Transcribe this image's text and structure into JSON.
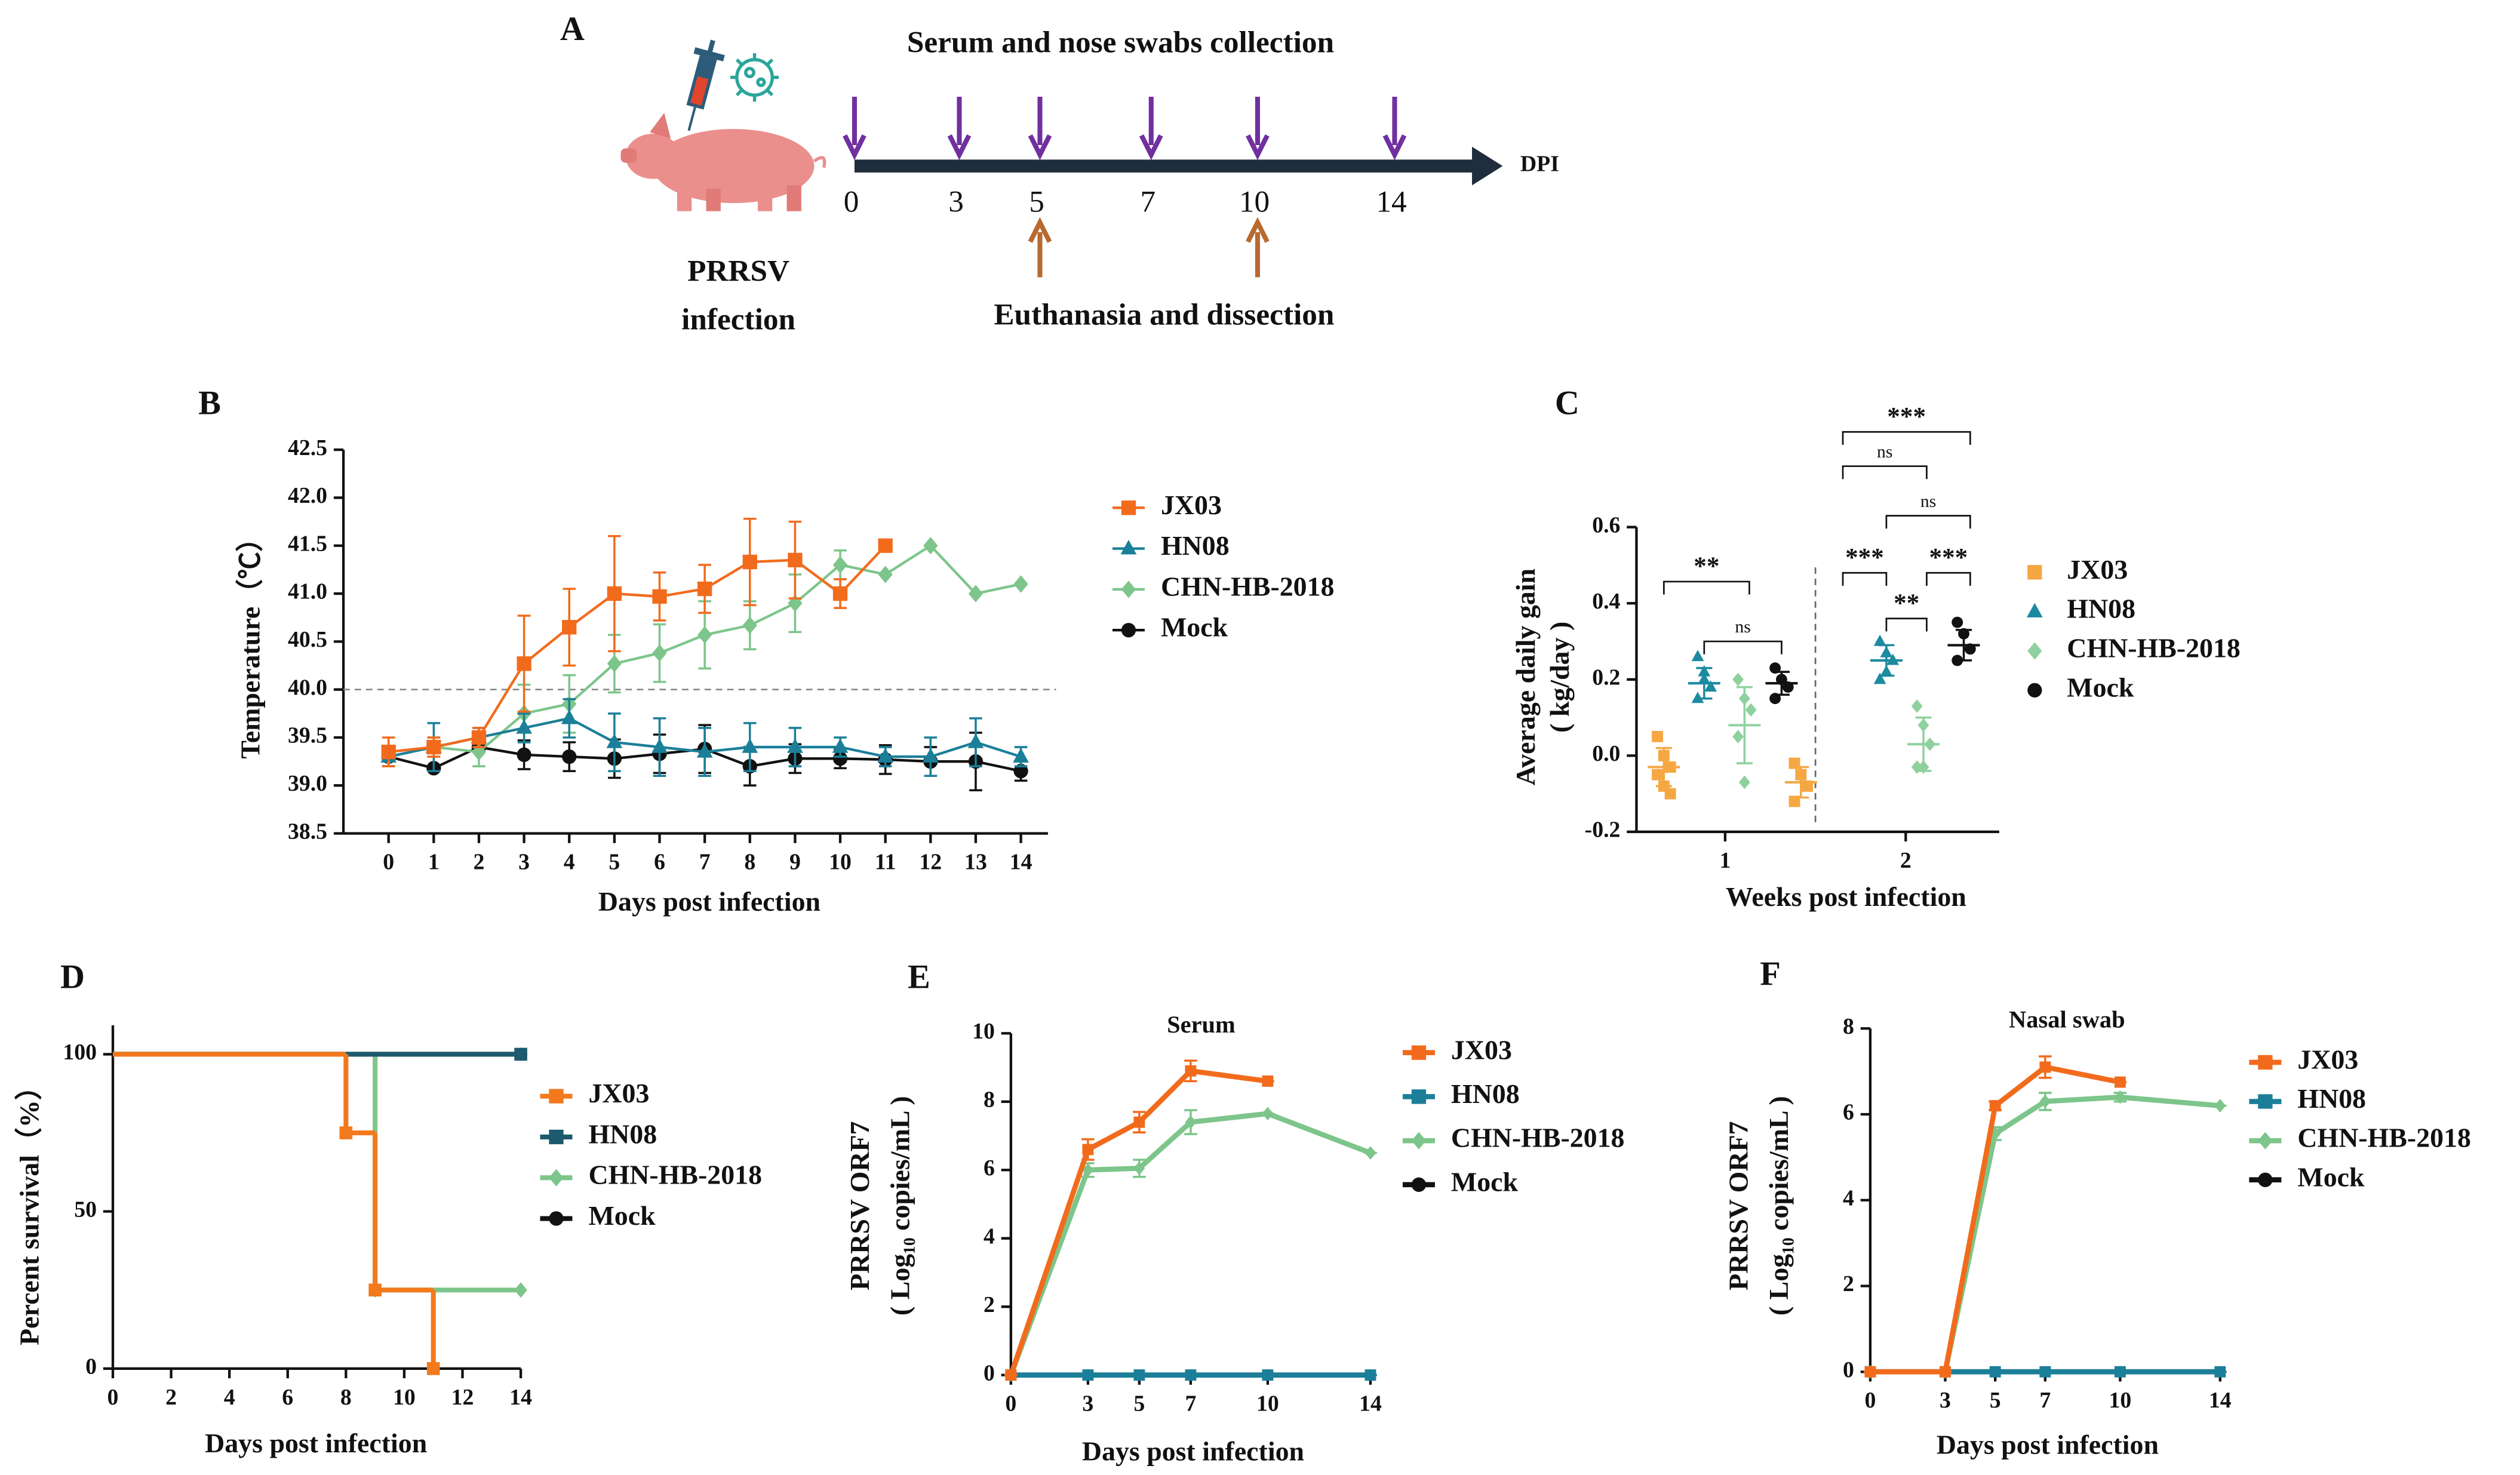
{
  "timeline": {
    "panel": "A",
    "title": "Serum and nose swabs collection",
    "days": [
      0,
      3,
      5,
      7,
      10,
      14
    ],
    "unit": "DPI",
    "sampling_days": [
      0,
      3,
      5,
      7,
      10,
      14
    ],
    "euthanasia_days": [
      5,
      10
    ],
    "euthanasia_label": "Euthanasia and dissection",
    "infection_label": [
      "PRRSV",
      "infection"
    ],
    "title_color": "#7030a0",
    "euthanasia_color": "#b8692e"
  },
  "chart_data": [
    {
      "panel": "B",
      "type": "line",
      "xlabel": "Days post infection",
      "ylabel": [
        "Temperature（℃）"
      ],
      "x": [
        0,
        1,
        2,
        3,
        4,
        5,
        6,
        7,
        8,
        9,
        10,
        11,
        12,
        13,
        14
      ],
      "xlim": [
        -1,
        14.6
      ],
      "xticks": [
        0,
        1,
        2,
        3,
        4,
        5,
        6,
        7,
        8,
        9,
        10,
        11,
        12,
        13,
        14
      ],
      "ylim": [
        38.5,
        42.5
      ],
      "yticks": [
        38.5,
        {
          "value": 39,
          "label": "39.0"
        },
        39.5,
        {
          "value": 40,
          "label": "40.0"
        },
        40.5,
        {
          "value": 41,
          "label": "41.0"
        },
        41.5,
        {
          "value": 42,
          "label": "42.0"
        },
        42.5
      ],
      "ref_line": 40,
      "series": [
        {
          "name": "JX03",
          "color": "#f26b1d",
          "marker": "square",
          "values": [
            39.35,
            39.4,
            39.5,
            40.27,
            40.65,
            41.0,
            40.97,
            41.05,
            41.33,
            41.35,
            41.0,
            41.5,
            null,
            null,
            null
          ],
          "errors": [
            0.15,
            0.1,
            0.1,
            0.5,
            0.4,
            0.6,
            0.25,
            0.25,
            0.45,
            0.4,
            0.15,
            0,
            null,
            null,
            null
          ]
        },
        {
          "name": "HN08",
          "color": "#1b7f99",
          "marker": "triangle",
          "values": [
            39.3,
            39.4,
            39.5,
            39.6,
            39.7,
            39.45,
            39.4,
            39.35,
            39.4,
            39.4,
            39.4,
            39.3,
            39.3,
            39.45,
            39.3
          ],
          "errors": [
            0.1,
            0.25,
            0.1,
            0.15,
            0.2,
            0.3,
            0.3,
            0.25,
            0.25,
            0.2,
            0.1,
            0.1,
            0.2,
            0.25,
            0.1
          ]
        },
        {
          "name": "CHN-HB-2018",
          "color": "#7dc58a",
          "marker": "diamond",
          "values": [
            39.3,
            39.4,
            39.35,
            39.75,
            39.85,
            40.27,
            40.38,
            40.57,
            40.67,
            40.9,
            41.3,
            41.2,
            41.5,
            41.0,
            41.1
          ],
          "errors": [
            0.1,
            0.1,
            0.15,
            0.3,
            0.3,
            0.3,
            0.3,
            0.35,
            0.25,
            0.3,
            0.15,
            0,
            0,
            0,
            0
          ]
        },
        {
          "name": "Mock",
          "color": "#111111",
          "marker": "circle",
          "values": [
            39.3,
            39.18,
            39.4,
            39.32,
            39.3,
            39.28,
            39.33,
            39.38,
            39.2,
            39.28,
            39.28,
            39.27,
            39.25,
            39.25,
            39.15
          ],
          "errors": [
            0.1,
            0,
            0.05,
            0.15,
            0.15,
            0.2,
            0.2,
            0.25,
            0.2,
            0.15,
            0.1,
            0.15,
            0.15,
            0.3,
            0.1
          ]
        }
      ]
    },
    {
      "panel": "C",
      "type": "strip",
      "xlabel": "Weeks post infection",
      "ylabel": [
        "Average daily  gain",
        "( kg/day )"
      ],
      "categories": [
        "1",
        "2"
      ],
      "ylim": [
        -0.2,
        0.6
      ],
      "yticks": [
        -0.2,
        {
          "value": 0,
          "label": "0.0"
        },
        0.2,
        0.4,
        0.6
      ],
      "annotations": [
        "**",
        "ns",
        "***",
        "ns",
        "ns",
        "***",
        "***",
        "**"
      ],
      "series": [
        {
          "name": "JX03",
          "color": "#f5a742",
          "marker": "square",
          "values": [
            [
              0.05,
              0.0,
              -0.03,
              -0.05,
              -0.08,
              -0.1
            ],
            [
              -0.02,
              -0.05,
              -0.08,
              -0.12
            ]
          ],
          "means": [
            -0.03,
            -0.07
          ],
          "sds": [
            0.05,
            0.04
          ]
        },
        {
          "name": "HN08",
          "color": "#1d8aa0",
          "marker": "triangle",
          "values": [
            [
              0.26,
              0.22,
              0.18,
              0.15,
              0.2
            ],
            [
              0.3,
              0.27,
              0.25,
              0.2,
              0.22
            ]
          ],
          "means": [
            0.19,
            0.25
          ],
          "sds": [
            0.04,
            0.04
          ]
        },
        {
          "name": "CHN-HB-2018",
          "color": "#8fd19e",
          "marker": "diamond",
          "values": [
            [
              0.2,
              0.15,
              0.12,
              0.05,
              -0.07
            ],
            [
              0.13,
              0.08,
              0.03,
              -0.03,
              -0.03
            ]
          ],
          "means": [
            0.08,
            0.03
          ],
          "sds": [
            0.1,
            0.07
          ]
        },
        {
          "name": "Mock",
          "color": "#111111",
          "marker": "circle",
          "values": [
            [
              0.23,
              0.2,
              0.18,
              0.15
            ],
            [
              0.35,
              0.32,
              0.28,
              0.25
            ]
          ],
          "means": [
            0.19,
            0.29
          ],
          "sds": [
            0.03,
            0.04
          ]
        }
      ]
    },
    {
      "panel": "D",
      "type": "step",
      "xlabel": "Days post infection",
      "ylabel": [
        "Percent survival（%）"
      ],
      "xlim": [
        0,
        14
      ],
      "xticks": [
        0,
        2,
        4,
        6,
        8,
        10,
        12,
        14
      ],
      "ylim": [
        0,
        100
      ],
      "yticks": [
        0,
        50,
        100
      ],
      "series": [
        {
          "name": "JX03",
          "color": "#f27a1d",
          "marker": "square",
          "x": [
            0,
            8,
            9,
            11
          ],
          "values": [
            100,
            75,
            25,
            0
          ]
        },
        {
          "name": "HN08",
          "color": "#1d5a6e",
          "marker": "square",
          "x": [
            0,
            14
          ],
          "values": [
            100,
            100
          ]
        },
        {
          "name": "CHN-HB-2018",
          "color": "#7dc58a",
          "marker": "diamond",
          "x": [
            0,
            9,
            14
          ],
          "values": [
            100,
            25,
            25
          ]
        },
        {
          "name": "Mock",
          "color": "#111111",
          "marker": "circle",
          "x": [
            0,
            14
          ],
          "values": [
            100,
            100
          ]
        }
      ]
    },
    {
      "panel": "E",
      "type": "line",
      "title": "Serum",
      "xlabel": "Days post infection",
      "ylabel": [
        "PRRSV ORF7",
        "( Log₁₀ copies/mL )"
      ],
      "x": [
        0,
        3,
        5,
        7,
        10,
        14
      ],
      "xlim": [
        0,
        14
      ],
      "xticks": [
        0,
        3,
        5,
        7,
        10,
        14
      ],
      "ylim": [
        0,
        10
      ],
      "yticks": [
        0,
        2,
        4,
        6,
        8,
        10
      ],
      "thick": true,
      "series": [
        {
          "name": "JX03",
          "color": "#f26b1d",
          "marker": "square",
          "values": [
            0,
            6.6,
            7.4,
            8.9,
            8.6,
            null
          ],
          "errors": [
            0,
            0.3,
            0.3,
            0.3,
            0,
            null
          ]
        },
        {
          "name": "HN08",
          "color": "#1b7f99",
          "marker": "square",
          "values": [
            0,
            0,
            0,
            0,
            0,
            0
          ],
          "errors": [
            0,
            0,
            0,
            0,
            0,
            0
          ]
        },
        {
          "name": "CHN-HB-2018",
          "color": "#7dc58a",
          "marker": "diamond",
          "values": [
            0,
            6.0,
            6.05,
            7.4,
            7.65,
            6.5
          ],
          "errors": [
            0,
            0.2,
            0.25,
            0.35,
            0,
            0
          ]
        },
        {
          "name": "Mock",
          "color": "#111111",
          "marker": "circle",
          "values": [
            0,
            0,
            0,
            0,
            0,
            0
          ],
          "errors": [
            0,
            0,
            0,
            0,
            0,
            0
          ]
        }
      ]
    },
    {
      "panel": "F",
      "type": "line",
      "title": "Nasal swab",
      "xlabel": "Days post infection",
      "ylabel": [
        "PRRSV ORF7",
        "( Log₁₀ copies/mL )"
      ],
      "x": [
        0,
        3,
        5,
        7,
        10,
        14
      ],
      "xlim": [
        0,
        14
      ],
      "xticks": [
        0,
        3,
        5,
        7,
        10,
        14
      ],
      "ylim": [
        0,
        8
      ],
      "yticks": [
        0,
        2,
        4,
        6,
        8
      ],
      "thick": true,
      "series": [
        {
          "name": "JX03",
          "color": "#f26b1d",
          "marker": "square",
          "values": [
            0,
            0,
            6.2,
            7.1,
            6.75,
            null
          ],
          "errors": [
            0,
            0,
            0.1,
            0.25,
            0,
            null
          ]
        },
        {
          "name": "HN08",
          "color": "#1b7f99",
          "marker": "square",
          "values": [
            0,
            0,
            0,
            0,
            0,
            0
          ],
          "errors": [
            0,
            0,
            0,
            0,
            0,
            0
          ]
        },
        {
          "name": "CHN-HB-2018",
          "color": "#7dc58a",
          "marker": "diamond",
          "values": [
            0,
            0,
            5.55,
            6.3,
            6.4,
            6.2
          ],
          "errors": [
            0,
            0,
            0.15,
            0.2,
            0.1,
            0
          ]
        },
        {
          "name": "Mock",
          "color": "#111111",
          "marker": "circle",
          "values": [
            0,
            0,
            0,
            0,
            0,
            0
          ],
          "errors": [
            0,
            0,
            0,
            0,
            0,
            0
          ]
        }
      ]
    }
  ]
}
